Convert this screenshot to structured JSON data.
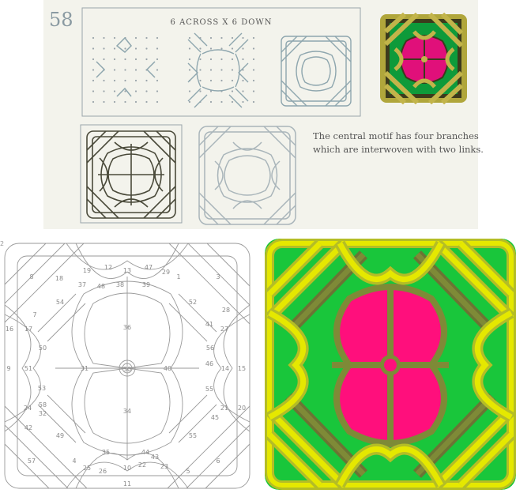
{
  "page": {
    "number": "58",
    "grid_heading": "6 across x 6 down",
    "description_line1": "The central motif has four branches",
    "description_line2": "which are interwoven with two links.",
    "corner_mark": "2"
  },
  "colors": {
    "plate_bg": "#f3f3ec",
    "gray_line": "#8a9aa2",
    "dark_band": "#6b7334",
    "olive": "#7e8a37",
    "olive_light": "#b4bd26",
    "yellow": "#e5e800",
    "magenta": "#ff0f7c",
    "green": "#19c63b",
    "outline": "#9a9a9a"
  },
  "numbered_regions": [
    "8",
    "18",
    "19",
    "12",
    "13",
    "47",
    "29",
    "1",
    "3",
    "37",
    "48",
    "38",
    "39",
    "54",
    "52",
    "28",
    "7",
    "36",
    "41",
    "16",
    "17",
    "27",
    "50",
    "56",
    "9",
    "51",
    "31",
    "30",
    "40",
    "46",
    "14",
    "15",
    "53",
    "58",
    "55",
    "24",
    "32",
    "21",
    "20",
    "42",
    "34",
    "45",
    "49",
    "55",
    "57",
    "35",
    "44",
    "4",
    "43",
    "6",
    "25",
    "26",
    "10",
    "22",
    "23",
    "5",
    "11"
  ],
  "icons": [
    "celtic-knot-swatch",
    "dot-grid",
    "outline-knot",
    "numbered-knot",
    "colored-knot"
  ]
}
